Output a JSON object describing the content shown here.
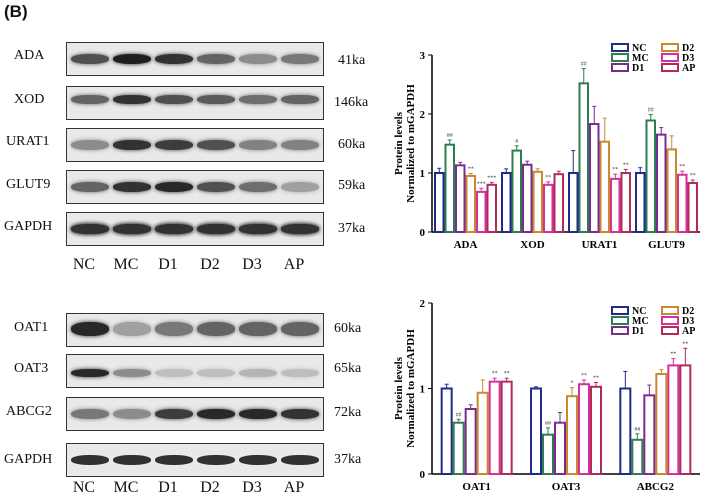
{
  "panel_label": "(B)",
  "blots_top": {
    "rows": [
      {
        "label": "ADA",
        "size": "41ka"
      },
      {
        "label": "XOD",
        "size": "146ka"
      },
      {
        "label": "URAT1",
        "size": "60ka"
      },
      {
        "label": "GLUT9",
        "size": "59ka"
      },
      {
        "label": "GAPDH",
        "size": "37ka"
      }
    ],
    "lanes": [
      "NC",
      "MC",
      "D1",
      "D2",
      "D3",
      "AP"
    ]
  },
  "blots_bottom": {
    "rows": [
      {
        "label": "OAT1",
        "size": "60ka"
      },
      {
        "label": "OAT3",
        "size": "65ka"
      },
      {
        "label": "ABCG2",
        "size": "72ka"
      },
      {
        "label": "GAPDH",
        "size": "37ka"
      }
    ],
    "lanes": [
      "NC",
      "MC",
      "D1",
      "D2",
      "D3",
      "AP"
    ]
  },
  "colors": {
    "NC": "#1f2a8c",
    "MC": "#2e7d4f",
    "D1": "#7b2b8f",
    "D2": "#c98a2e",
    "D3": "#d6309a",
    "AP": "#b02a5e"
  },
  "chart_data": [
    {
      "type": "bar",
      "ylabel_line1": "Protein levels",
      "ylabel_line2": "Normalized to mGAPDH",
      "ylim": [
        0,
        3
      ],
      "yticks": [
        "0",
        "1",
        "2",
        "3"
      ],
      "categories": [
        "ADA",
        "XOD",
        "URAT1",
        "GLUT9"
      ],
      "legend_position": "top-right",
      "series": [
        {
          "name": "NC",
          "values": [
            1.0,
            1.0,
            1.0,
            1.0
          ],
          "errors": [
            0.08,
            0.07,
            0.38,
            0.09
          ],
          "marks": [
            "",
            "",
            "",
            ""
          ]
        },
        {
          "name": "MC",
          "values": [
            1.48,
            1.38,
            2.52,
            1.89
          ],
          "errors": [
            0.08,
            0.08,
            0.25,
            0.1
          ],
          "marks": [
            "##",
            "#",
            "##",
            "##"
          ]
        },
        {
          "name": "D1",
          "values": [
            1.13,
            1.14,
            1.83,
            1.65
          ],
          "errors": [
            0.05,
            0.06,
            0.3,
            0.12
          ],
          "marks": [
            "",
            "",
            "",
            ""
          ]
        },
        {
          "name": "D2",
          "values": [
            0.95,
            1.02,
            1.53,
            1.4
          ],
          "errors": [
            0.04,
            0.05,
            0.4,
            0.23
          ],
          "marks": [
            "**",
            "",
            "",
            ""
          ]
        },
        {
          "name": "D3",
          "values": [
            0.68,
            0.8,
            0.9,
            0.97
          ],
          "errors": [
            0.06,
            0.05,
            0.08,
            0.06
          ],
          "marks": [
            "***",
            "**",
            "**",
            "**"
          ]
        },
        {
          "name": "AP",
          "values": [
            0.8,
            0.98,
            1.0,
            0.83
          ],
          "errors": [
            0.04,
            0.05,
            0.06,
            0.05
          ],
          "marks": [
            "***",
            "",
            "**",
            "**"
          ]
        }
      ]
    },
    {
      "type": "bar",
      "ylabel_line1": "Protein levels",
      "ylabel_line2": "Normalized to mGAPDH",
      "ylim": [
        0,
        2
      ],
      "yticks": [
        "0",
        "1",
        "2"
      ],
      "categories": [
        "OAT1",
        "OAT3",
        "ABCG2"
      ],
      "legend_position": "top-right",
      "series": [
        {
          "name": "NC",
          "values": [
            1.0,
            1.0,
            1.0
          ],
          "errors": [
            0.05,
            0.02,
            0.2
          ],
          "marks": [
            "",
            "",
            ""
          ]
        },
        {
          "name": "MC",
          "values": [
            0.6,
            0.46,
            0.4
          ],
          "errors": [
            0.04,
            0.08,
            0.07
          ],
          "marks": [
            "##",
            "##",
            "##"
          ]
        },
        {
          "name": "D1",
          "values": [
            0.76,
            0.6,
            0.92
          ],
          "errors": [
            0.05,
            0.12,
            0.12
          ],
          "marks": [
            "",
            "",
            ""
          ]
        },
        {
          "name": "D2",
          "values": [
            0.95,
            0.91,
            1.17
          ],
          "errors": [
            0.15,
            0.1,
            0.05
          ],
          "marks": [
            "",
            "*",
            ""
          ]
        },
        {
          "name": "D3",
          "values": [
            1.08,
            1.05,
            1.27
          ],
          "errors": [
            0.04,
            0.05,
            0.08
          ],
          "marks": [
            "**",
            "**",
            "**"
          ]
        },
        {
          "name": "AP",
          "values": [
            1.08,
            1.02,
            1.27
          ],
          "errors": [
            0.04,
            0.05,
            0.2
          ],
          "marks": [
            "**",
            "**",
            "**"
          ]
        }
      ]
    }
  ]
}
